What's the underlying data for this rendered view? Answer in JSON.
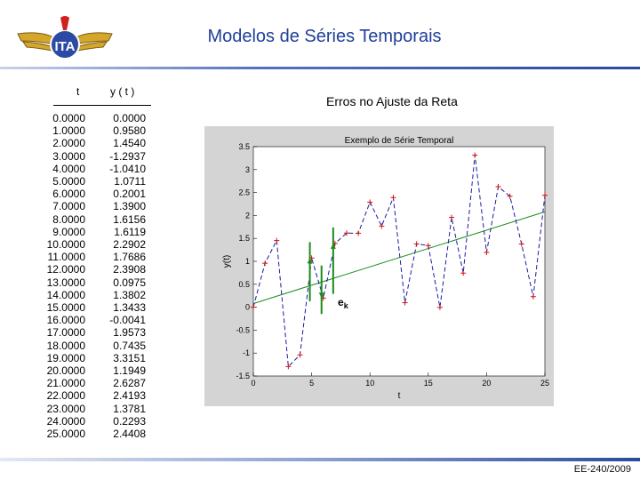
{
  "header": {
    "title": "Modelos de Séries Temporais"
  },
  "table": {
    "col_t": "t",
    "col_y": "y ( t )",
    "rows": [
      {
        "t": "0.0000",
        "y": "0.0000"
      },
      {
        "t": "1.0000",
        "y": "0.9580"
      },
      {
        "t": "2.0000",
        "y": "1.4540"
      },
      {
        "t": "3.0000",
        "y": "-1.2937"
      },
      {
        "t": "4.0000",
        "y": "-1.0410"
      },
      {
        "t": "5.0000",
        "y": "1.0711"
      },
      {
        "t": "6.0000",
        "y": "0.2001"
      },
      {
        "t": "7.0000",
        "y": "1.3900"
      },
      {
        "t": "8.0000",
        "y": "1.6156"
      },
      {
        "t": "9.0000",
        "y": "1.6119"
      },
      {
        "t": "10.0000",
        "y": "2.2902"
      },
      {
        "t": "11.0000",
        "y": "1.7686"
      },
      {
        "t": "12.0000",
        "y": "2.3908"
      },
      {
        "t": "13.0000",
        "y": "0.0975"
      },
      {
        "t": "14.0000",
        "y": "1.3802"
      },
      {
        "t": "15.0000",
        "y": "1.3433"
      },
      {
        "t": "16.0000",
        "y": "-0.0041"
      },
      {
        "t": "17.0000",
        "y": "1.9573"
      },
      {
        "t": "18.0000",
        "y": "0.7435"
      },
      {
        "t": "19.0000",
        "y": "3.3151"
      },
      {
        "t": "20.0000",
        "y": "1.1949"
      },
      {
        "t": "21.0000",
        "y": "2.6287"
      },
      {
        "t": "22.0000",
        "y": "2.4193"
      },
      {
        "t": "23.0000",
        "y": "1.3781"
      },
      {
        "t": "24.0000",
        "y": "0.2293"
      },
      {
        "t": "25.0000",
        "y": "2.4408"
      }
    ]
  },
  "section": {
    "subtitle": "Erros no Ajuste da Reta"
  },
  "chart_data": {
    "type": "line",
    "title": "Exemplo de Série Temporal",
    "xlabel": "t",
    "ylabel": "y(t)",
    "xlim": [
      0,
      25
    ],
    "ylim": [
      -1.5,
      3.5
    ],
    "xticks": [
      "0",
      "5",
      "10",
      "15",
      "20",
      "25"
    ],
    "yticks": [
      "3.5",
      "3",
      "2.5",
      "2",
      "1.5",
      "1",
      "0.5",
      "0",
      "-0.5",
      "-1",
      "-1.5"
    ],
    "x": [
      0,
      1,
      2,
      3,
      4,
      5,
      6,
      7,
      8,
      9,
      10,
      11,
      12,
      13,
      14,
      15,
      16,
      17,
      18,
      19,
      20,
      21,
      22,
      23,
      24,
      25
    ],
    "series": [
      {
        "values": [
          0.0,
          0.958,
          1.454,
          -1.2937,
          -1.041,
          1.0711,
          0.2001,
          1.39,
          1.6156,
          1.6119,
          2.2902,
          1.7686,
          2.3908,
          0.0975,
          1.3802,
          1.3433,
          -0.0041,
          1.9573,
          0.7435,
          3.3151,
          1.1949,
          2.6287,
          2.4193,
          1.3781,
          0.2293,
          2.4408
        ],
        "style": "dashed",
        "marker": "+"
      }
    ],
    "fit_line": {
      "x": [
        0,
        25
      ],
      "y": [
        0.08,
        2.08
      ]
    },
    "annotation": "e",
    "annotation_sub": "k",
    "colors": {
      "series": "#1a1aa6",
      "marker": "#d01010",
      "fit": "#1a8c1a",
      "background": "#d4d4d4",
      "axes_bg": "#ffffff"
    }
  },
  "footer": {
    "course": "EE-240/2009"
  }
}
